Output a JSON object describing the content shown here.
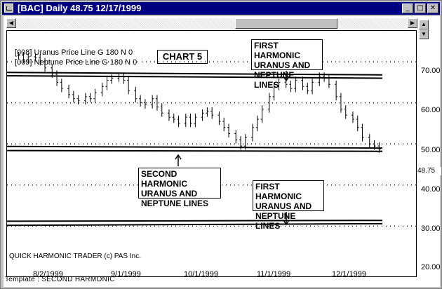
{
  "window": {
    "title": "[BAC] Daily 48.75 12/17/1999",
    "buttons": {
      "minimize": "_",
      "maximize": "□",
      "close": "✕"
    }
  },
  "scrollbar": {
    "left_arrow": "◀",
    "right_arrow": "▶"
  },
  "side_buttons": {
    "up": "▲",
    "down": "▼"
  },
  "marker_colors": {
    "top_right": "#e85020",
    "bottom_right": "#20c020"
  },
  "chart_data": {
    "type": "ohlc",
    "title": "CHART 5",
    "legend": [
      "[008] Uranus Price Line G 180 N 0",
      "[009] Neptune Price Line G 180 N 0"
    ],
    "y_ticks": [
      "70.00",
      "60.00",
      "50.00",
      "40.00",
      "30.00",
      "20.00"
    ],
    "y_range": [
      20,
      77
    ],
    "last_price": "48.75",
    "x_ticks": [
      "8/2/1999",
      "9/1/1999",
      "10/1/1999",
      "11/1/1999",
      "12/1/1999"
    ],
    "x_range": [
      "1999-07-15",
      "1999-12-31"
    ],
    "price_series": [
      {
        "date": "1999-07-19",
        "value": 71.5
      },
      {
        "date": "1999-07-21",
        "value": 70.5
      },
      {
        "date": "1999-07-23",
        "value": 71.2
      },
      {
        "date": "1999-07-26",
        "value": 71.0
      },
      {
        "date": "1999-07-28",
        "value": 70.0
      },
      {
        "date": "1999-07-30",
        "value": 68.5
      },
      {
        "date": "1999-08-02",
        "value": 67.0
      },
      {
        "date": "1999-08-04",
        "value": 65.0
      },
      {
        "date": "1999-08-06",
        "value": 63.5
      },
      {
        "date": "1999-08-09",
        "value": 62.0
      },
      {
        "date": "1999-08-11",
        "value": 61.0
      },
      {
        "date": "1999-08-13",
        "value": 60.5
      },
      {
        "date": "1999-08-16",
        "value": 61.5
      },
      {
        "date": "1999-08-18",
        "value": 61.0
      },
      {
        "date": "1999-08-20",
        "value": 62.5
      },
      {
        "date": "1999-08-23",
        "value": 64.0
      },
      {
        "date": "1999-08-25",
        "value": 65.5
      },
      {
        "date": "1999-08-27",
        "value": 66.0
      },
      {
        "date": "1999-08-30",
        "value": 66.5
      },
      {
        "date": "1999-09-01",
        "value": 65.5
      },
      {
        "date": "1999-09-03",
        "value": 63.0
      },
      {
        "date": "1999-09-06",
        "value": 61.0
      },
      {
        "date": "1999-09-08",
        "value": 60.0
      },
      {
        "date": "1999-09-10",
        "value": 59.5
      },
      {
        "date": "1999-09-13",
        "value": 61.0
      },
      {
        "date": "1999-09-15",
        "value": 59.0
      },
      {
        "date": "1999-09-17",
        "value": 57.5
      },
      {
        "date": "1999-09-20",
        "value": 56.5
      },
      {
        "date": "1999-09-22",
        "value": 56.0
      },
      {
        "date": "1999-09-24",
        "value": 55.0
      },
      {
        "date": "1999-09-27",
        "value": 56.5
      },
      {
        "date": "1999-09-29",
        "value": 55.0
      },
      {
        "date": "1999-10-01",
        "value": 56.5
      },
      {
        "date": "1999-10-04",
        "value": 57.5
      },
      {
        "date": "1999-10-06",
        "value": 58.0
      },
      {
        "date": "1999-10-08",
        "value": 57.0
      },
      {
        "date": "1999-10-11",
        "value": 55.5
      },
      {
        "date": "1999-10-13",
        "value": 54.0
      },
      {
        "date": "1999-10-15",
        "value": 52.5
      },
      {
        "date": "1999-10-18",
        "value": 51.0
      },
      {
        "date": "1999-10-20",
        "value": 49.5
      },
      {
        "date": "1999-10-22",
        "value": 51.5
      },
      {
        "date": "1999-10-25",
        "value": 54.0
      },
      {
        "date": "1999-10-27",
        "value": 56.0
      },
      {
        "date": "1999-10-29",
        "value": 58.5
      },
      {
        "date": "1999-11-01",
        "value": 61.5
      },
      {
        "date": "1999-11-03",
        "value": 64.0
      },
      {
        "date": "1999-11-05",
        "value": 65.0
      },
      {
        "date": "1999-11-08",
        "value": 64.5
      },
      {
        "date": "1999-11-10",
        "value": 63.5
      },
      {
        "date": "1999-11-12",
        "value": 65.5
      },
      {
        "date": "1999-11-15",
        "value": 64.0
      },
      {
        "date": "1999-11-17",
        "value": 63.0
      },
      {
        "date": "1999-11-19",
        "value": 65.0
      },
      {
        "date": "1999-11-22",
        "value": 66.5
      },
      {
        "date": "1999-11-24",
        "value": 66.0
      },
      {
        "date": "1999-11-26",
        "value": 64.5
      },
      {
        "date": "1999-11-29",
        "value": 61.5
      },
      {
        "date": "1999-12-01",
        "value": 58.5
      },
      {
        "date": "1999-12-03",
        "value": 57.0
      },
      {
        "date": "1999-12-06",
        "value": 56.0
      },
      {
        "date": "1999-12-08",
        "value": 54.0
      },
      {
        "date": "1999-12-10",
        "value": 51.5
      },
      {
        "date": "1999-12-13",
        "value": 50.0
      },
      {
        "date": "1999-12-15",
        "value": 49.5
      },
      {
        "date": "1999-12-17",
        "value": 48.75
      }
    ],
    "harmonic_lines": [
      {
        "name": "Uranus first harmonic (upper)",
        "values": [
          67.4,
          66.8
        ]
      },
      {
        "name": "Neptune first harmonic (upper)",
        "values": [
          66.6,
          66.0
        ]
      },
      {
        "name": "Uranus second harmonic",
        "values": [
          49.4,
          49.0
        ]
      },
      {
        "name": "Neptune second harmonic",
        "values": [
          48.4,
          48.2
        ]
      },
      {
        "name": "Uranus first harmonic (lower)",
        "values": [
          31.2,
          31.4
        ]
      },
      {
        "name": "Neptune first harmonic (lower)",
        "values": [
          30.2,
          30.6
        ]
      }
    ],
    "annotations": {
      "first_upper": "FIRST HARMONIC\nURANUS AND\nNEPTUNE LINES",
      "second": "SECOND HARMONIC\nURANUS AND\nNEPTUNE LINES",
      "first_lower": "FIRST HARMONIC\nURANUS AND\nNEPTUNE LINES"
    },
    "copyright": "QUICK HARMONIC TRADER (c) PAS Inc."
  },
  "status": {
    "template": "Template : SECOND HARMONIC"
  }
}
